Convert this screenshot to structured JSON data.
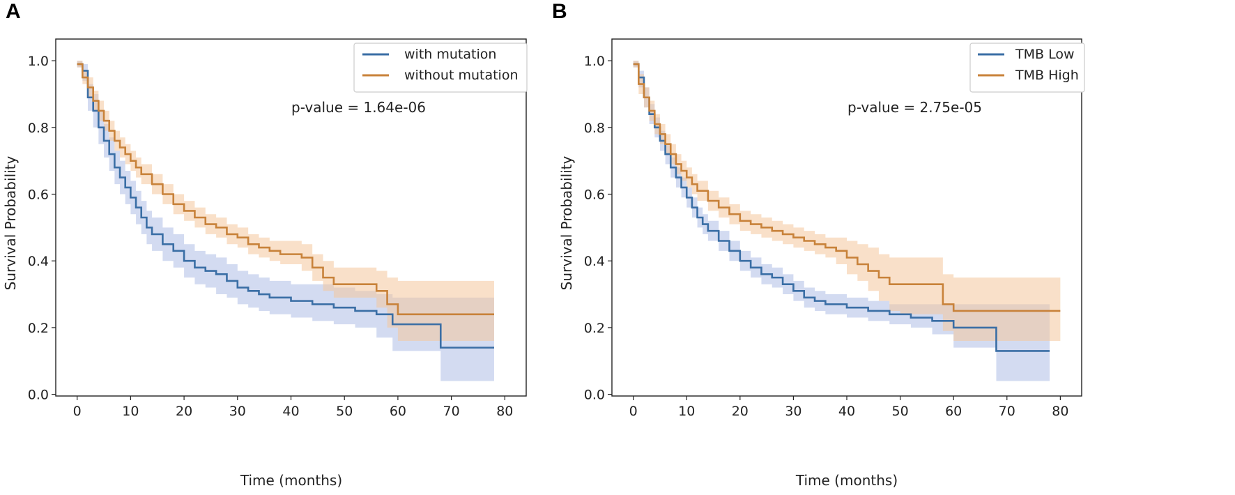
{
  "chart_data": [
    {
      "panel": "A",
      "type": "line",
      "xlabel": "Time (months)",
      "ylabel": "Survival Probability",
      "xlim": [
        -4,
        84
      ],
      "ylim": [
        0.0,
        1.0
      ],
      "xticks": [
        0,
        10,
        20,
        30,
        40,
        50,
        60,
        70,
        80
      ],
      "yticks": [
        0.0,
        0.2,
        0.4,
        0.6,
        0.8,
        1.0
      ],
      "annotation": "p-value = 1.64e-06",
      "legend_position": "top-right",
      "series": [
        {
          "name": "with mutation",
          "color": "#3a6ea5",
          "band_color": "#aebee6",
          "x": [
            0,
            1,
            2,
            3,
            4,
            5,
            6,
            7,
            8,
            9,
            10,
            11,
            12,
            13,
            14,
            16,
            18,
            20,
            22,
            24,
            26,
            28,
            30,
            32,
            34,
            36,
            40,
            44,
            48,
            52,
            56,
            59,
            68,
            78
          ],
          "y": [
            0.99,
            0.97,
            0.89,
            0.85,
            0.8,
            0.76,
            0.72,
            0.68,
            0.65,
            0.62,
            0.59,
            0.56,
            0.53,
            0.5,
            0.48,
            0.45,
            0.43,
            0.4,
            0.38,
            0.37,
            0.36,
            0.34,
            0.32,
            0.31,
            0.3,
            0.29,
            0.28,
            0.27,
            0.26,
            0.25,
            0.24,
            0.21,
            0.14,
            0.14
          ],
          "lower": [
            0.98,
            0.94,
            0.85,
            0.8,
            0.75,
            0.71,
            0.67,
            0.63,
            0.6,
            0.57,
            0.54,
            0.51,
            0.48,
            0.45,
            0.43,
            0.4,
            0.38,
            0.35,
            0.33,
            0.32,
            0.3,
            0.29,
            0.27,
            0.26,
            0.25,
            0.24,
            0.23,
            0.22,
            0.21,
            0.2,
            0.17,
            0.13,
            0.04,
            0.04
          ],
          "upper": [
            1.0,
            0.99,
            0.93,
            0.9,
            0.85,
            0.81,
            0.77,
            0.73,
            0.7,
            0.67,
            0.64,
            0.61,
            0.58,
            0.55,
            0.53,
            0.5,
            0.48,
            0.45,
            0.43,
            0.42,
            0.41,
            0.39,
            0.37,
            0.36,
            0.35,
            0.34,
            0.33,
            0.33,
            0.32,
            0.31,
            0.3,
            0.29,
            0.29,
            0.29
          ]
        },
        {
          "name": "without mutation",
          "color": "#c8823a",
          "band_color": "#f4c79c",
          "x": [
            0,
            1,
            2,
            3,
            4,
            5,
            6,
            7,
            8,
            9,
            10,
            11,
            12,
            14,
            16,
            18,
            20,
            22,
            24,
            26,
            28,
            30,
            32,
            34,
            36,
            38,
            42,
            44,
            46,
            48,
            56,
            58,
            60,
            78
          ],
          "y": [
            0.99,
            0.95,
            0.92,
            0.88,
            0.85,
            0.82,
            0.79,
            0.76,
            0.74,
            0.72,
            0.7,
            0.68,
            0.66,
            0.63,
            0.6,
            0.57,
            0.55,
            0.53,
            0.51,
            0.5,
            0.48,
            0.47,
            0.45,
            0.44,
            0.43,
            0.42,
            0.41,
            0.38,
            0.35,
            0.33,
            0.31,
            0.27,
            0.24,
            0.24
          ],
          "lower": [
            0.98,
            0.93,
            0.89,
            0.85,
            0.82,
            0.79,
            0.76,
            0.73,
            0.71,
            0.69,
            0.67,
            0.65,
            0.63,
            0.6,
            0.57,
            0.54,
            0.52,
            0.5,
            0.48,
            0.47,
            0.45,
            0.44,
            0.42,
            0.41,
            0.4,
            0.39,
            0.37,
            0.34,
            0.31,
            0.29,
            0.26,
            0.2,
            0.16,
            0.16
          ],
          "upper": [
            1.0,
            0.97,
            0.95,
            0.91,
            0.88,
            0.85,
            0.82,
            0.79,
            0.77,
            0.75,
            0.73,
            0.71,
            0.69,
            0.66,
            0.63,
            0.6,
            0.58,
            0.56,
            0.54,
            0.53,
            0.51,
            0.5,
            0.48,
            0.47,
            0.46,
            0.46,
            0.45,
            0.42,
            0.4,
            0.38,
            0.37,
            0.35,
            0.34,
            0.34
          ]
        }
      ]
    },
    {
      "panel": "B",
      "type": "line",
      "xlabel": "Time (months)",
      "ylabel": "Survival Probability",
      "xlim": [
        -4,
        84
      ],
      "ylim": [
        0.0,
        1.0
      ],
      "xticks": [
        0,
        10,
        20,
        30,
        40,
        50,
        60,
        70,
        80
      ],
      "yticks": [
        0.0,
        0.2,
        0.4,
        0.6,
        0.8,
        1.0
      ],
      "annotation": "p-value = 2.75e-05",
      "legend_position": "top-right",
      "series": [
        {
          "name": "TMB Low",
          "color": "#3a6ea5",
          "band_color": "#aebee6",
          "x": [
            0,
            1,
            2,
            3,
            4,
            5,
            6,
            7,
            8,
            9,
            10,
            11,
            12,
            13,
            14,
            16,
            18,
            20,
            22,
            24,
            26,
            28,
            30,
            32,
            34,
            36,
            40,
            44,
            48,
            52,
            56,
            60,
            68,
            78
          ],
          "y": [
            0.99,
            0.95,
            0.89,
            0.84,
            0.8,
            0.76,
            0.72,
            0.68,
            0.65,
            0.62,
            0.59,
            0.56,
            0.53,
            0.51,
            0.49,
            0.46,
            0.43,
            0.4,
            0.38,
            0.36,
            0.35,
            0.33,
            0.31,
            0.29,
            0.28,
            0.27,
            0.26,
            0.25,
            0.24,
            0.23,
            0.22,
            0.2,
            0.13,
            0.13
          ],
          "lower": [
            0.98,
            0.92,
            0.86,
            0.81,
            0.77,
            0.73,
            0.69,
            0.65,
            0.62,
            0.59,
            0.56,
            0.53,
            0.5,
            0.48,
            0.46,
            0.43,
            0.4,
            0.37,
            0.35,
            0.33,
            0.32,
            0.3,
            0.28,
            0.26,
            0.25,
            0.24,
            0.23,
            0.22,
            0.21,
            0.2,
            0.18,
            0.14,
            0.04,
            0.04
          ],
          "upper": [
            1.0,
            0.97,
            0.92,
            0.87,
            0.83,
            0.79,
            0.75,
            0.71,
            0.68,
            0.65,
            0.62,
            0.59,
            0.56,
            0.54,
            0.52,
            0.49,
            0.46,
            0.43,
            0.41,
            0.39,
            0.38,
            0.36,
            0.34,
            0.32,
            0.31,
            0.3,
            0.29,
            0.28,
            0.27,
            0.27,
            0.27,
            0.27,
            0.27,
            0.27
          ]
        },
        {
          "name": "TMB High",
          "color": "#c8823a",
          "band_color": "#f4c79c",
          "x": [
            0,
            1,
            2,
            3,
            4,
            5,
            6,
            7,
            8,
            9,
            10,
            11,
            12,
            14,
            16,
            18,
            20,
            22,
            24,
            26,
            28,
            30,
            32,
            34,
            36,
            38,
            40,
            42,
            44,
            46,
            48,
            50,
            58,
            60,
            80
          ],
          "y": [
            0.99,
            0.93,
            0.89,
            0.85,
            0.81,
            0.78,
            0.75,
            0.72,
            0.69,
            0.67,
            0.65,
            0.63,
            0.61,
            0.58,
            0.56,
            0.54,
            0.52,
            0.51,
            0.5,
            0.49,
            0.48,
            0.47,
            0.46,
            0.45,
            0.44,
            0.43,
            0.41,
            0.39,
            0.37,
            0.35,
            0.33,
            0.33,
            0.27,
            0.25,
            0.25
          ],
          "lower": [
            0.98,
            0.9,
            0.86,
            0.82,
            0.78,
            0.75,
            0.72,
            0.69,
            0.66,
            0.64,
            0.62,
            0.6,
            0.58,
            0.55,
            0.53,
            0.51,
            0.49,
            0.48,
            0.47,
            0.46,
            0.45,
            0.44,
            0.43,
            0.42,
            0.41,
            0.39,
            0.36,
            0.34,
            0.31,
            0.28,
            0.25,
            0.24,
            0.19,
            0.16,
            0.16
          ],
          "upper": [
            1.0,
            0.96,
            0.92,
            0.88,
            0.84,
            0.81,
            0.78,
            0.75,
            0.72,
            0.7,
            0.68,
            0.66,
            0.64,
            0.61,
            0.59,
            0.57,
            0.55,
            0.54,
            0.53,
            0.52,
            0.51,
            0.5,
            0.49,
            0.48,
            0.47,
            0.47,
            0.46,
            0.45,
            0.44,
            0.42,
            0.41,
            0.41,
            0.36,
            0.35,
            0.35
          ]
        }
      ]
    }
  ]
}
